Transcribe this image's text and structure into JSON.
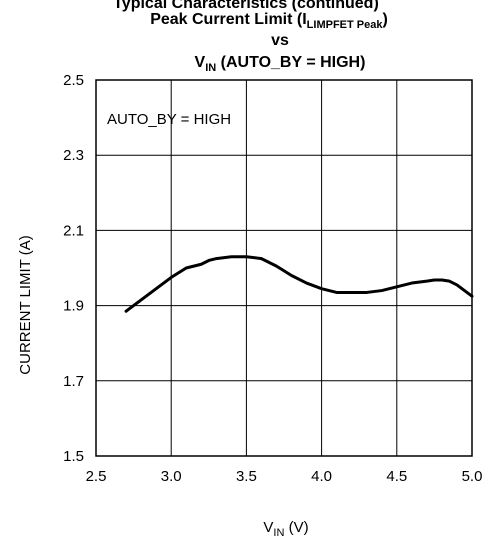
{
  "page_header_fragment": "Typical Characteristics (continued)",
  "chart_data": {
    "type": "line",
    "title": {
      "line1_main": "Peak Current Limit (I",
      "line1_sub": "LIMPFET Peak",
      "line1_close": ")",
      "line2": "vs",
      "line3_main": "V",
      "line3_sub": "IN",
      "line3_rest": " (AUTO_BY = HIGH)"
    },
    "xlabel": {
      "main": "V",
      "sub": "IN",
      "rest": " (V)"
    },
    "ylabel": "CURRENT LIMIT (A)",
    "annotation": "AUTO_BY = HIGH",
    "xlim": [
      2.5,
      5.0
    ],
    "ylim": [
      1.5,
      2.5
    ],
    "x_ticks": [
      "2.5",
      "3.0",
      "3.5",
      "4.0",
      "4.5",
      "5.0"
    ],
    "y_ticks": [
      "2.5",
      "2.3",
      "2.1",
      "1.9",
      "1.7",
      "1.5"
    ],
    "grid": true,
    "series": [
      {
        "color": "#000000",
        "x": [
          2.7,
          2.8,
          2.9,
          3.0,
          3.1,
          3.2,
          3.25,
          3.3,
          3.4,
          3.5,
          3.6,
          3.7,
          3.8,
          3.9,
          4.0,
          4.1,
          4.2,
          4.3,
          4.4,
          4.5,
          4.6,
          4.7,
          4.75,
          4.8,
          4.85,
          4.9,
          4.95,
          5.0
        ],
        "y": [
          1.885,
          1.915,
          1.945,
          1.975,
          2.0,
          2.01,
          2.02,
          2.025,
          2.03,
          2.03,
          2.025,
          2.005,
          1.98,
          1.96,
          1.945,
          1.935,
          1.935,
          1.935,
          1.94,
          1.95,
          1.96,
          1.965,
          1.968,
          1.968,
          1.965,
          1.955,
          1.94,
          1.925
        ]
      }
    ]
  }
}
